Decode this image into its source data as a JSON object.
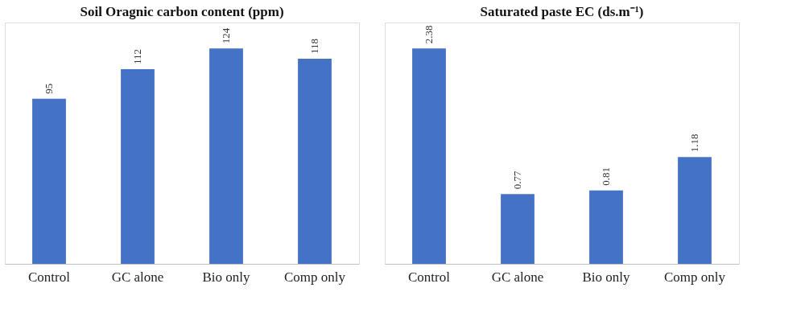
{
  "chart_data": [
    {
      "type": "bar",
      "title": "Soil Oragnic carbon content (ppm)",
      "categories": [
        "Control",
        "GC alone",
        "Bio only",
        "Comp only"
      ],
      "values": [
        95,
        112,
        124,
        118
      ],
      "color": "#4472c4",
      "data_labels": true,
      "tick_labels": "x"
    },
    {
      "type": "bar",
      "title": "Saturated paste EC (ds.m⁻¹)",
      "categories": [
        "Control",
        "GC alone",
        "Bio only",
        "Comp only"
      ],
      "values": [
        2.38,
        0.77,
        0.81,
        1.18
      ],
      "color": "#4472c4",
      "data_labels": true,
      "tick_labels": "x"
    }
  ]
}
